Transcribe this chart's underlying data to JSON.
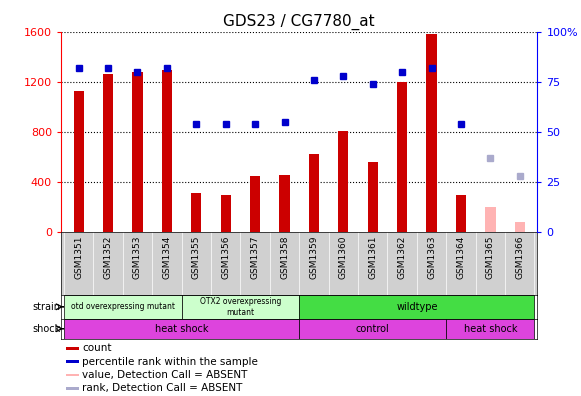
{
  "title": "GDS23 / CG7780_at",
  "samples": [
    "GSM1351",
    "GSM1352",
    "GSM1353",
    "GSM1354",
    "GSM1355",
    "GSM1356",
    "GSM1357",
    "GSM1358",
    "GSM1359",
    "GSM1360",
    "GSM1361",
    "GSM1362",
    "GSM1363",
    "GSM1364",
    "GSM1365",
    "GSM1366"
  ],
  "counts": [
    1130,
    1265,
    1280,
    1295,
    310,
    295,
    450,
    460,
    625,
    810,
    560,
    1200,
    1580,
    295,
    null,
    null
  ],
  "absent_counts": [
    null,
    null,
    null,
    null,
    null,
    null,
    null,
    null,
    null,
    null,
    null,
    null,
    null,
    null,
    200,
    80
  ],
  "percentile_ranks": [
    82,
    82,
    80,
    82,
    54,
    54,
    54,
    55,
    76,
    78,
    74,
    80,
    82,
    54,
    null,
    null
  ],
  "absent_ranks": [
    null,
    null,
    null,
    null,
    null,
    null,
    null,
    null,
    null,
    null,
    null,
    null,
    null,
    null,
    37,
    28
  ],
  "ylim_left": [
    0,
    1600
  ],
  "ylim_right": [
    0,
    100
  ],
  "yticks_left": [
    0,
    400,
    800,
    1200,
    1600
  ],
  "yticks_right": [
    0,
    25,
    50,
    75,
    100
  ],
  "bar_color": "#cc0000",
  "absent_bar_color": "#ffb3b3",
  "dot_color": "#0000cc",
  "absent_dot_color": "#aaaacc",
  "grid_color": "#000000",
  "tick_area_bg": "#d0d0d0",
  "strain_otd_color": "#ccffcc",
  "strain_otx2_color": "#ccffcc",
  "strain_wildtype_color": "#44dd44",
  "shock_color": "#dd44dd",
  "shock_control_color": "#dd44dd"
}
